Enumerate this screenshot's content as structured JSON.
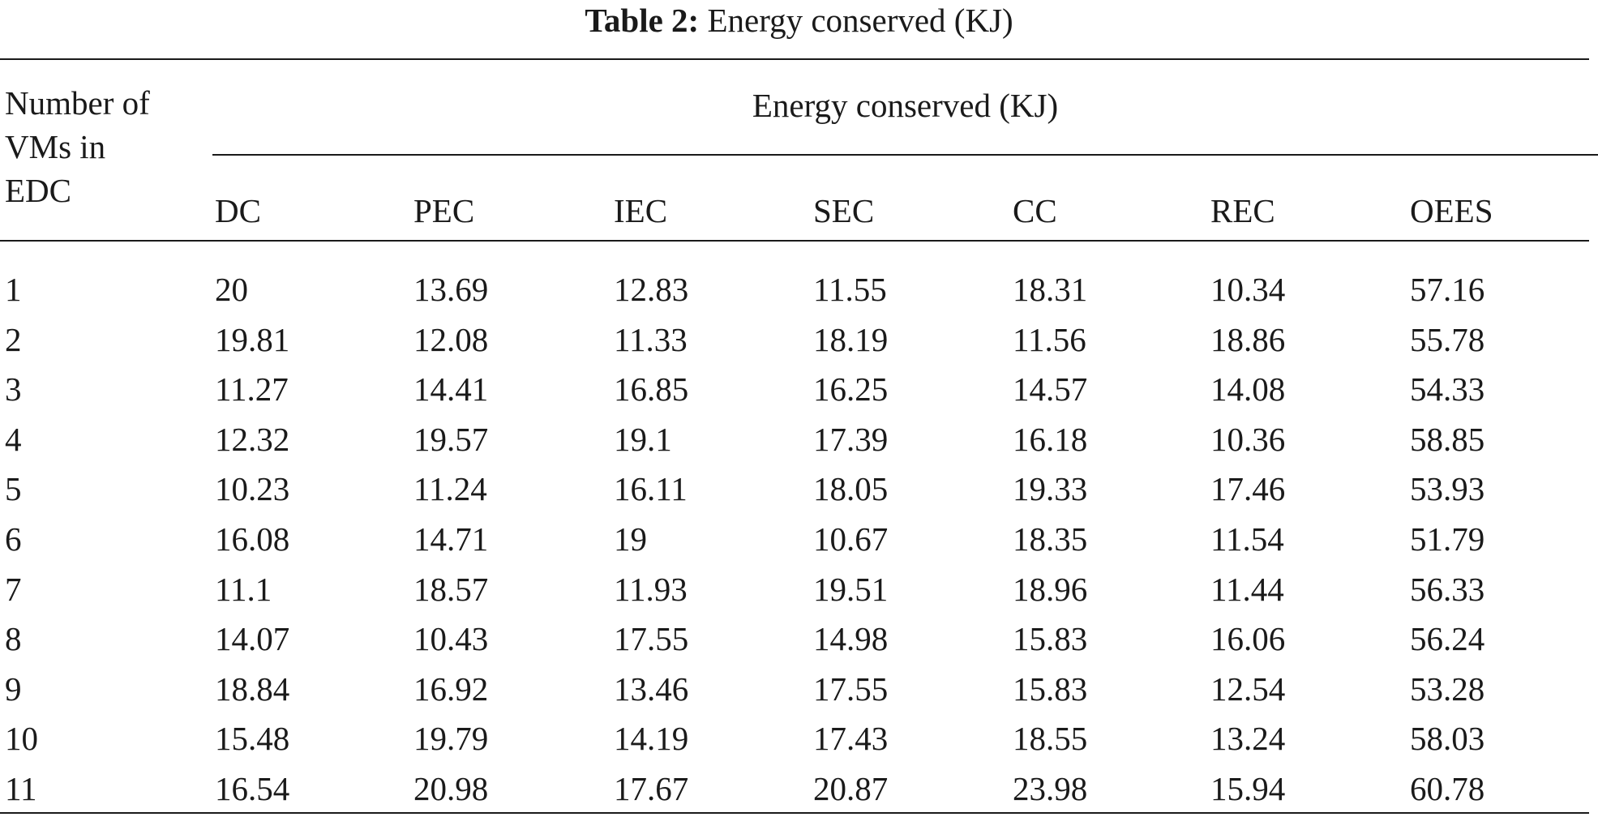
{
  "caption": {
    "label": "Table 2:",
    "text": "Energy conserved (KJ)"
  },
  "table": {
    "stub_header_lines": [
      "Number of",
      "VMs in",
      "EDC"
    ],
    "group_header": "Energy conserved (KJ)",
    "columns": [
      "DC",
      "PEC",
      "IEC",
      "SEC",
      "CC",
      "REC",
      "OEES"
    ],
    "rows": [
      {
        "vms": "1",
        "values": [
          "20",
          "13.69",
          "12.83",
          "11.55",
          "18.31",
          "10.34",
          "57.16"
        ]
      },
      {
        "vms": "2",
        "values": [
          "19.81",
          "12.08",
          "11.33",
          "18.19",
          "11.56",
          "18.86",
          "55.78"
        ]
      },
      {
        "vms": "3",
        "values": [
          "11.27",
          "14.41",
          "16.85",
          "16.25",
          "14.57",
          "14.08",
          "54.33"
        ]
      },
      {
        "vms": "4",
        "values": [
          "12.32",
          "19.57",
          "19.1",
          "17.39",
          "16.18",
          "10.36",
          "58.85"
        ]
      },
      {
        "vms": "5",
        "values": [
          "10.23",
          "11.24",
          "16.11",
          "18.05",
          "19.33",
          "17.46",
          "53.93"
        ]
      },
      {
        "vms": "6",
        "values": [
          "16.08",
          "14.71",
          "19",
          "10.67",
          "18.35",
          "11.54",
          "51.79"
        ]
      },
      {
        "vms": "7",
        "values": [
          "11.1",
          "18.57",
          "11.93",
          "19.51",
          "18.96",
          "11.44",
          "56.33"
        ]
      },
      {
        "vms": "8",
        "values": [
          "14.07",
          "10.43",
          "17.55",
          "14.98",
          "15.83",
          "16.06",
          "56.24"
        ]
      },
      {
        "vms": "9",
        "values": [
          "18.84",
          "16.92",
          "13.46",
          "17.55",
          "15.83",
          "12.54",
          "53.28"
        ]
      },
      {
        "vms": "10",
        "values": [
          "15.48",
          "19.79",
          "14.19",
          "17.43",
          "18.55",
          "13.24",
          "58.03"
        ]
      },
      {
        "vms": "11",
        "values": [
          "16.54",
          "20.98",
          "17.67",
          "20.87",
          "23.98",
          "15.94",
          "60.78"
        ]
      }
    ]
  }
}
